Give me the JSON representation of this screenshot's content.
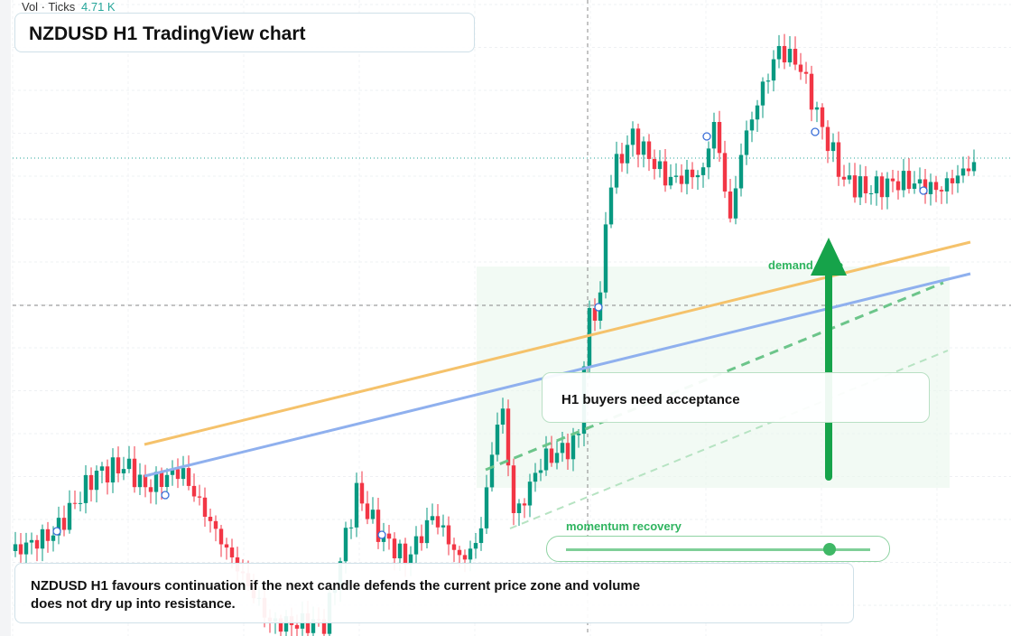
{
  "header": {
    "indicator": "Vol · Ticks",
    "indicator_value": "4.71 K",
    "title": "NZDUSD H1 TradingView chart"
  },
  "annotations": {
    "zone": "demand zone",
    "callout": "H1 buyers need acceptance",
    "slider": "momentum recovery"
  },
  "note": "NZDUSD H1 favours continuation if the next candle defends the current price zone and volume does not dry up into resistance."
}
